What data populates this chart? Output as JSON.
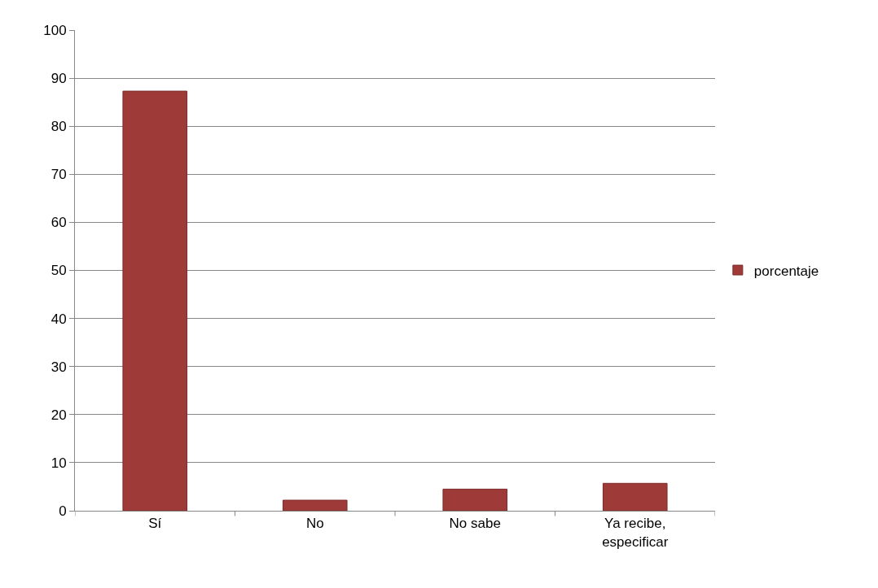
{
  "chart_data": {
    "type": "bar",
    "categories": [
      "Sí",
      "No",
      "No sabe",
      "Ya recibe, especificar"
    ],
    "series": [
      {
        "name": "porcentaje",
        "color": "#9e3b39",
        "values": [
          87.3,
          2.2,
          4.5,
          5.7
        ]
      }
    ],
    "ylim": [
      0,
      100
    ],
    "yticks": [
      0,
      10,
      20,
      30,
      40,
      50,
      60,
      70,
      80,
      90,
      100
    ],
    "grid": "y",
    "legend": "right"
  }
}
